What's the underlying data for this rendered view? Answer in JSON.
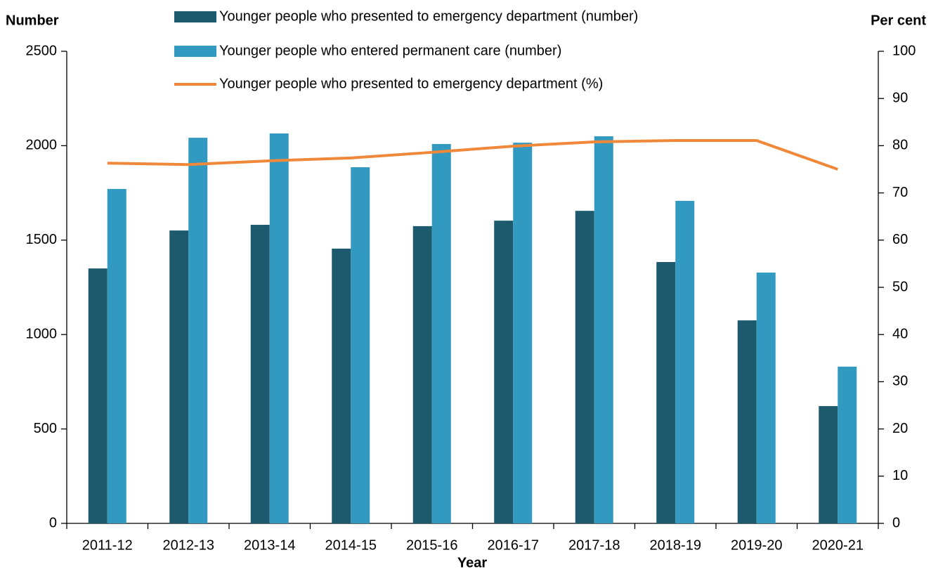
{
  "chart_data": {
    "type": "bar",
    "x_label": "Year",
    "y_label": "Number",
    "y2_label": "Per cent",
    "categories": [
      "2011-12",
      "2012-13",
      "2013-14",
      "2014-15",
      "2015-16",
      "2016-17",
      "2017-18",
      "2018-19",
      "2019-20",
      "2020-21"
    ],
    "series": [
      {
        "name": "Younger people who presented to emergency department (number)",
        "type": "bar",
        "color": "#1e5a6e",
        "values": [
          1350,
          1551,
          1581,
          1455,
          1574,
          1603,
          1655,
          1384,
          1075,
          621
        ]
      },
      {
        "name": "Younger people who entered permanent care (number)",
        "type": "bar",
        "color": "#329ac0",
        "values": [
          1771,
          2042,
          2065,
          1886,
          2009,
          2016,
          2050,
          1708,
          1328,
          830
        ]
      },
      {
        "name": "Younger people who presented to emergency department (%)",
        "type": "line",
        "color": "#f0883a",
        "axis": "y2",
        "values": [
          76.3,
          76.0,
          76.8,
          77.4,
          78.6,
          79.9,
          80.8,
          81.1,
          81.1,
          75.0
        ]
      }
    ],
    "ylim": [
      0,
      2500
    ],
    "yticks": [
      0,
      500,
      1000,
      1500,
      2000,
      2500
    ],
    "y2lim": [
      0,
      100
    ],
    "y2ticks": [
      0,
      10,
      20,
      30,
      40,
      50,
      60,
      70,
      80,
      90,
      100
    ],
    "grid": false
  }
}
